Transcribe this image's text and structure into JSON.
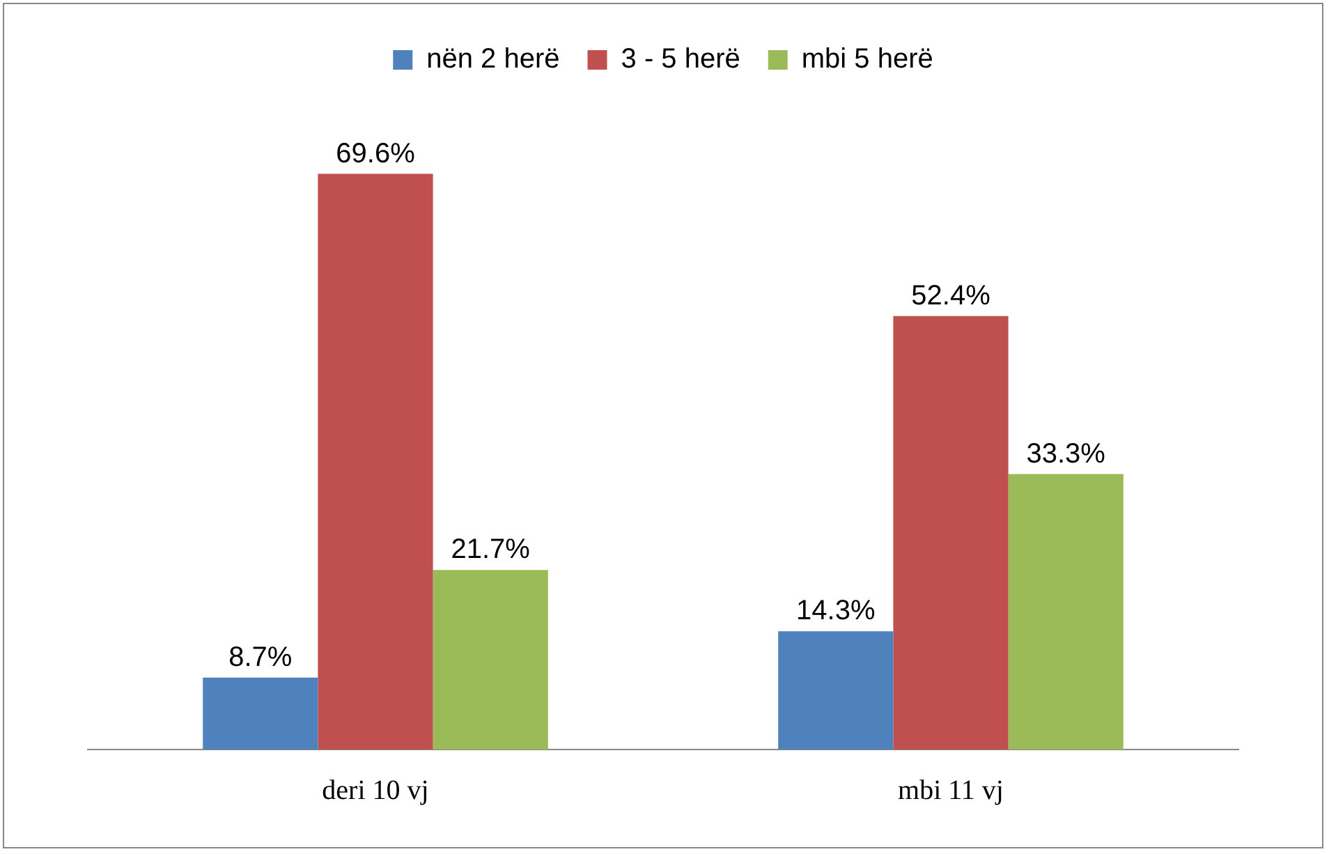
{
  "chart_data": {
    "type": "bar",
    "categories": [
      "deri 10 vj",
      "mbi 11 vj"
    ],
    "series": [
      {
        "name": "nën 2 herë",
        "color": "#4f81bd",
        "values": [
          8.7,
          14.3
        ],
        "value_labels": [
          "8.7%",
          "14.3%"
        ]
      },
      {
        "name": "3 - 5 herë",
        "color": "#c0504d",
        "values": [
          69.6,
          52.4
        ],
        "value_labels": [
          "69.6%",
          "52.4%"
        ]
      },
      {
        "name": "mbi 5 herë",
        "color": "#9bbb59",
        "values": [
          21.7,
          33.3
        ],
        "value_labels": [
          "21.7%",
          "33.3%"
        ]
      }
    ],
    "legend": "top",
    "grid": false
  }
}
